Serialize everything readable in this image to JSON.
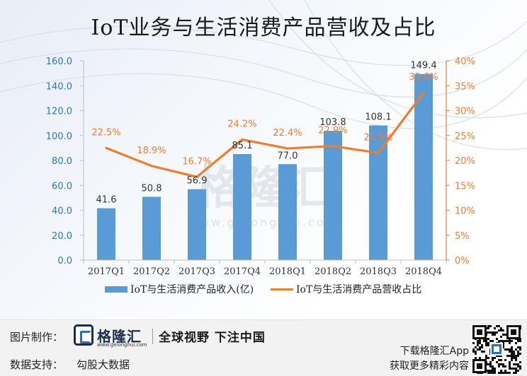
{
  "title": "IoT业务与生活消费产品营收及占比",
  "watermark": {
    "text": "格隆汇",
    "url": "www.gelonghui.com"
  },
  "chart_data": {
    "type": "bar+line",
    "categories": [
      "2017Q1",
      "2017Q2",
      "2017Q3",
      "2017Q4",
      "2018Q1",
      "2018Q2",
      "2018Q3",
      "2018Q4"
    ],
    "series": [
      {
        "name": "IoT与生活消费产品收入(亿)",
        "type": "bar",
        "axis": "left",
        "color": "#5b9bd5",
        "values": [
          41.6,
          50.8,
          56.9,
          85.1,
          77.0,
          103.8,
          108.1,
          149.4
        ],
        "labels": [
          "41.6",
          "50.8",
          "56.9",
          "85.1",
          "77.0",
          "103.8",
          "108.1",
          "149.4"
        ]
      },
      {
        "name": "IoT与生活消费产品营收占比",
        "type": "line",
        "axis": "right",
        "color": "#ed7d31",
        "values": [
          22.5,
          18.9,
          16.7,
          24.2,
          22.4,
          22.9,
          21.5,
          33.6
        ],
        "labels": [
          "22.5%",
          "18.9%",
          "16.7%",
          "24.2%",
          "22.4%",
          "22.9%",
          "21.5%",
          "33.6%"
        ]
      }
    ],
    "left_axis": {
      "min": 0,
      "max": 160,
      "ticks": [
        "0.0",
        "20.0",
        "40.0",
        "60.0",
        "80.0",
        "100.0",
        "120.0",
        "140.0",
        "160.0"
      ],
      "color": "#2e75b6"
    },
    "right_axis": {
      "min": 0,
      "max": 40,
      "ticks": [
        "0%",
        "5%",
        "10%",
        "15%",
        "20%",
        "25%",
        "30%",
        "35%",
        "40%"
      ],
      "color": "#ed7d31"
    },
    "legend_position": "bottom"
  },
  "footer": {
    "made_by_label": "图片制作：",
    "brand_name": "格隆汇",
    "brand_url": "www.gelonghui.com",
    "slogan": "全球视野 下注中国",
    "data_support_label": "数据支持：",
    "data_support_value": "勾股大数据",
    "app_line1": "下载格隆汇App",
    "app_line2": "获取更多精彩内容"
  }
}
